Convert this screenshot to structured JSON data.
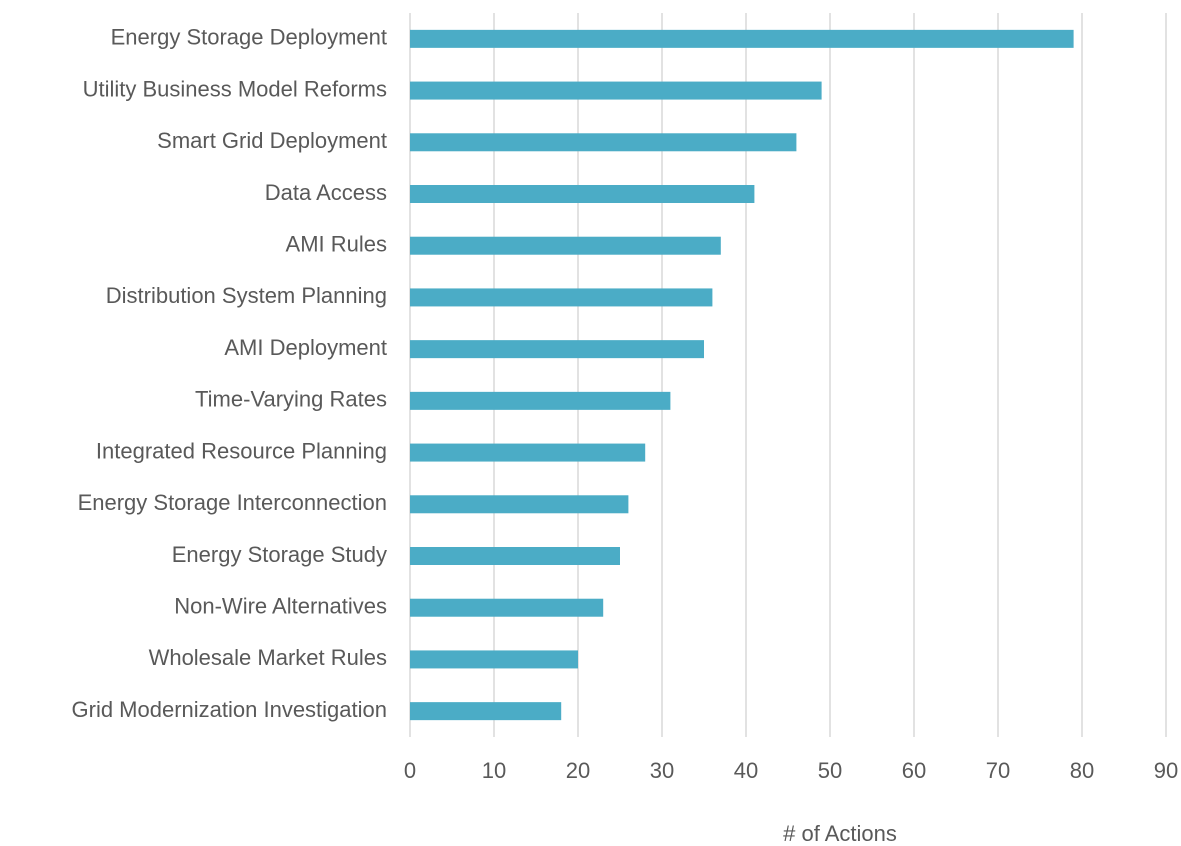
{
  "chart_data": {
    "type": "bar",
    "orientation": "horizontal",
    "categories": [
      "Energy Storage Deployment",
      "Utility Business Model Reforms",
      "Smart Grid Deployment",
      "Data Access",
      "AMI Rules",
      "Distribution System Planning",
      "AMI Deployment",
      "Time-Varying Rates",
      "Integrated Resource Planning",
      "Energy Storage Interconnection",
      "Energy Storage Study",
      "Non-Wire Alternatives",
      "Wholesale Market Rules",
      "Grid Modernization Investigation"
    ],
    "values": [
      79,
      49,
      46,
      41,
      37,
      36,
      35,
      31,
      28,
      26,
      25,
      23,
      20,
      18
    ],
    "color": "#4bacc6",
    "xlabel": "# of Actions",
    "xlim": [
      0,
      90
    ],
    "xticks": [
      0,
      10,
      20,
      30,
      40,
      50,
      60,
      70,
      80,
      90
    ],
    "grid": true
  }
}
